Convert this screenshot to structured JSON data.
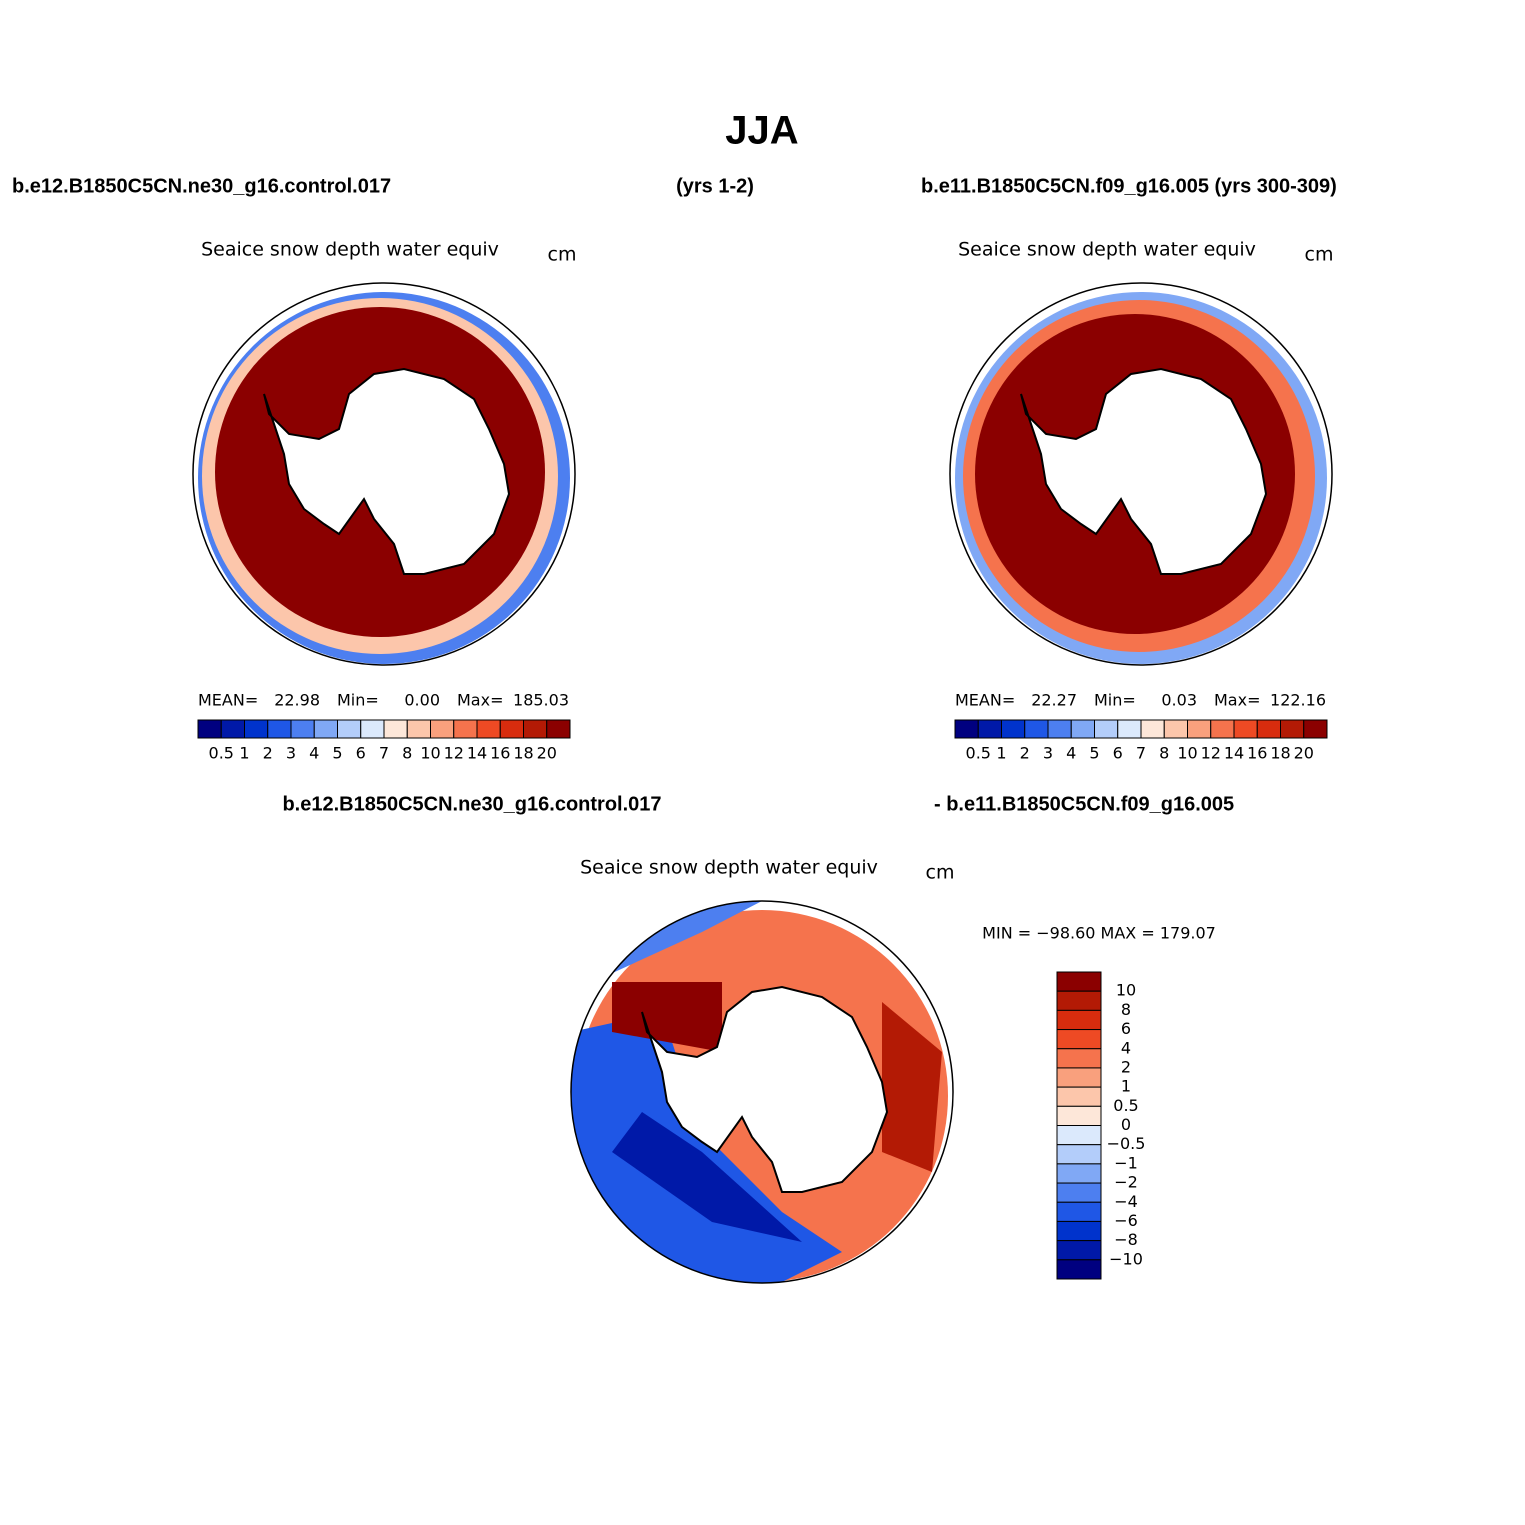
{
  "title": "JJA",
  "header": {
    "left": "b.e12.B1850C5CN.ne30_g16.control.017",
    "middle": "(yrs 1-2)",
    "right": "b.e11.B1850C5CN.f09_g16.005 (yrs 300-309)"
  },
  "panels": [
    {
      "title": "Seaice snow depth water equiv",
      "units": "cm",
      "stats": {
        "mean_label": "MEAN=",
        "mean": "22.98",
        "min_label": "Min=",
        "min": "0.00",
        "max_label": "Max=",
        "max": "185.03"
      },
      "colorbar": {
        "labels": [
          "0.5",
          "1",
          "2",
          "3",
          "4",
          "5",
          "6",
          "7",
          "8",
          "10",
          "12",
          "14",
          "16",
          "18",
          "20"
        ],
        "colors": [
          "#000080",
          "#0019a8",
          "#0033cc",
          "#1f57e6",
          "#4d7ff0",
          "#80a8f5",
          "#b3cdfa",
          "#dbe9fc",
          "#fde7d9",
          "#fcc6ab",
          "#f9a07d",
          "#f5734d",
          "#ee4a24",
          "#d82c0e",
          "#b31a05",
          "#8b0000"
        ]
      }
    },
    {
      "title": "Seaice snow depth water equiv",
      "units": "cm",
      "stats": {
        "mean_label": "MEAN=",
        "mean": "22.27",
        "min_label": "Min=",
        "min": "0.03",
        "max_label": "Max=",
        "max": "122.16"
      },
      "colorbar": {
        "labels": [
          "0.5",
          "1",
          "2",
          "3",
          "4",
          "5",
          "6",
          "7",
          "8",
          "10",
          "12",
          "14",
          "16",
          "18",
          "20"
        ],
        "colors": [
          "#000080",
          "#0019a8",
          "#0033cc",
          "#1f57e6",
          "#4d7ff0",
          "#80a8f5",
          "#b3cdfa",
          "#dbe9fc",
          "#fde7d9",
          "#fcc6ab",
          "#f9a07d",
          "#f5734d",
          "#ee4a24",
          "#d82c0e",
          "#b31a05",
          "#8b0000"
        ]
      }
    }
  ],
  "difference": {
    "left": "b.e12.B1850C5CN.ne30_g16.control.017",
    "right": "- b.e11.B1850C5CN.f09_g16.005",
    "title": "Seaice snow depth water equiv",
    "units": "cm",
    "range": "MIN = −98.60 MAX = 179.07",
    "colorbar": {
      "labels": [
        "10",
        "8",
        "6",
        "4",
        "2",
        "1",
        "0.5",
        "0",
        "−0.5",
        "−1",
        "−2",
        "−4",
        "−6",
        "−8",
        "−10"
      ],
      "colors": [
        "#8b0000",
        "#b31a05",
        "#d82c0e",
        "#ee4a24",
        "#f5734d",
        "#f9a07d",
        "#fcc6ab",
        "#fde7d9",
        "#dbe9fc",
        "#b3cdfa",
        "#80a8f5",
        "#4d7ff0",
        "#1f57e6",
        "#0033cc",
        "#0019a8",
        "#000080"
      ]
    }
  }
}
